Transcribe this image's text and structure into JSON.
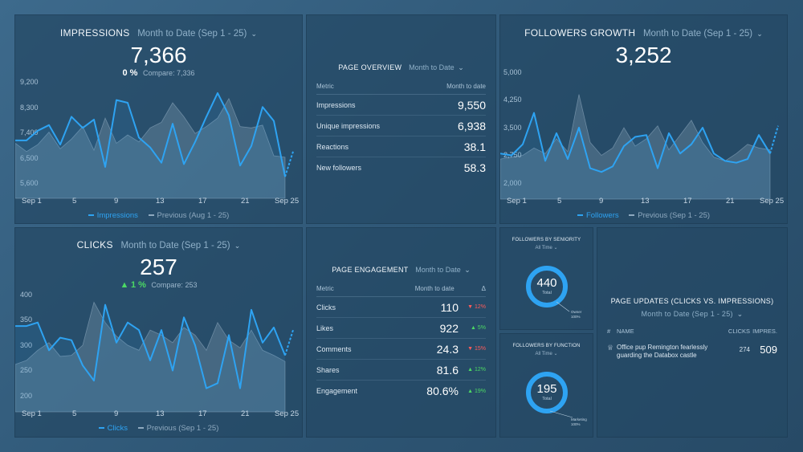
{
  "impressions": {
    "title": "IMPRESSIONS",
    "period": "Month to Date (Sep 1 - 25)",
    "value": "7,366",
    "change": "0 %",
    "compare": "Compare: 7,336",
    "legend_current": "Impressions",
    "legend_previous": "Previous (Aug 1 - 25)"
  },
  "page_overview": {
    "title": "PAGE OVERVIEW",
    "period": "Month to Date",
    "col_metric": "Metric",
    "col_value": "Month to date",
    "rows": [
      {
        "label": "Impressions",
        "value": "9,550"
      },
      {
        "label": "Unique impressions",
        "value": "6,938"
      },
      {
        "label": "Reactions",
        "value": "38.1"
      },
      {
        "label": "New followers",
        "value": "58.3"
      }
    ]
  },
  "followers_growth": {
    "title": "FOLLOWERS GROWTH",
    "period": "Month to Date (Sep 1 - 25)",
    "value": "3,252",
    "legend_current": "Followers",
    "legend_previous": "Previous (Sep 1 - 25)"
  },
  "clicks": {
    "title": "CLICKS",
    "period": "Month to Date (Sep 1 - 25)",
    "value": "257",
    "change": "1 %",
    "compare": "Compare: 253",
    "legend_current": "Clicks",
    "legend_previous": "Previous (Sep 1 - 25)"
  },
  "page_engagement": {
    "title": "PAGE ENGAGEMENT",
    "period": "Month to Date",
    "col_metric": "Metric",
    "col_value": "Month to date",
    "col_delta": "Δ",
    "rows": [
      {
        "label": "Clicks",
        "value": "110",
        "delta": "▼ 12%",
        "dir": "down"
      },
      {
        "label": "Likes",
        "value": "922",
        "delta": "▲ 5%",
        "dir": "up"
      },
      {
        "label": "Comments",
        "value": "24.3",
        "delta": "▼ 15%",
        "dir": "down"
      },
      {
        "label": "Shares",
        "value": "81.6",
        "delta": "▲ 12%",
        "dir": "up"
      },
      {
        "label": "Engagement",
        "value": "80.6%",
        "delta": "▲ 19%",
        "dir": "up"
      }
    ]
  },
  "followers_by_seniority": {
    "title": "FOLLOWERS BY SENIORITY",
    "period": "All Time",
    "value": "440",
    "total_label": "Total",
    "slice_label": "Owner",
    "slice_pct": "100%"
  },
  "followers_by_function": {
    "title": "FOLLOWERS BY FUNCTION",
    "period": "All Time",
    "value": "195",
    "total_label": "Total",
    "slice_label": "Marketing",
    "slice_pct": "100%"
  },
  "page_updates": {
    "title": "PAGE UPDATES (CLICKS VS. IMPRESSIONS)",
    "period": "Month to Date (Sep 1 - 25)",
    "col_hash": "#",
    "col_name": "NAME",
    "col_clicks": "CLICKS",
    "col_impr": "IMPRES.",
    "row_line1": "Office pup Remington fearlessly",
    "row_line2": "guarding the Databox castle",
    "row_clicks": "274",
    "row_impr": "509"
  },
  "colors": {
    "accent": "#2ea3f2",
    "previous": "#8ea9bf",
    "up": "#4cd964",
    "down": "#ff5b5b"
  },
  "chart_data": [
    {
      "type": "line",
      "title": "IMPRESSIONS",
      "x": [
        1,
        2,
        3,
        4,
        5,
        6,
        7,
        8,
        9,
        10,
        11,
        12,
        13,
        14,
        15,
        16,
        17,
        18,
        19,
        20,
        21,
        22,
        23,
        24,
        25
      ],
      "x_ticks": [
        "Sep 1",
        "5",
        "9",
        "13",
        "17",
        "21",
        "Sep 25"
      ],
      "y_ticks": [
        "9,200",
        "8,300",
        "7,400",
        "6,500",
        "5,600"
      ],
      "ylim": [
        5600,
        9200
      ],
      "series": [
        {
          "name": "Impressions",
          "values": [
            7100,
            7100,
            7450,
            7650,
            6950,
            7950,
            7550,
            7850,
            6150,
            8550,
            8450,
            7200,
            6850,
            6300,
            7700,
            6250,
            7050,
            7950,
            8800,
            8000,
            6200,
            6900,
            8300,
            7800,
            5800
          ]
        },
        {
          "name": "Previous (Aug 1 - 25)",
          "values": [
            7000,
            6700,
            6950,
            7400,
            6800,
            7150,
            7600,
            6750,
            7900,
            7000,
            7300,
            7050,
            7550,
            7750,
            8450,
            7950,
            7350,
            7600,
            7900,
            8600,
            7600,
            7550,
            7650,
            6550,
            6500
          ]
        }
      ],
      "projection": [
        5800,
        6700
      ]
    },
    {
      "type": "line",
      "title": "FOLLOWERS GROWTH",
      "x": [
        1,
        2,
        3,
        4,
        5,
        6,
        7,
        8,
        9,
        10,
        11,
        12,
        13,
        14,
        15,
        16,
        17,
        18,
        19,
        20,
        21,
        22,
        23,
        24,
        25
      ],
      "x_ticks": [
        "Sep 1",
        "5",
        "9",
        "13",
        "17",
        "21",
        "Sep 25"
      ],
      "y_ticks": [
        "5,000",
        "4,250",
        "3,500",
        "2,750",
        "2,000"
      ],
      "ylim": [
        2000,
        5000
      ],
      "series": [
        {
          "name": "Followers",
          "values": [
            2800,
            2750,
            3050,
            3900,
            2600,
            3350,
            2650,
            3500,
            2400,
            2300,
            2450,
            3000,
            3250,
            3300,
            2400,
            3350,
            2800,
            3050,
            3500,
            2800,
            2600,
            2550,
            2650,
            3300,
            2800
          ]
        },
        {
          "name": "Previous (Sep 1 - 25)",
          "values": [
            2650,
            2700,
            2750,
            2950,
            2800,
            3200,
            2850,
            4400,
            3100,
            2750,
            2950,
            3500,
            3000,
            3200,
            3550,
            2900,
            3300,
            3700,
            3100,
            2700,
            2600,
            2800,
            3050,
            2950,
            2900
          ]
        }
      ],
      "projection": [
        2800,
        3550
      ]
    },
    {
      "type": "line",
      "title": "CLICKS",
      "x": [
        1,
        2,
        3,
        4,
        5,
        6,
        7,
        8,
        9,
        10,
        11,
        12,
        13,
        14,
        15,
        16,
        17,
        18,
        19,
        20,
        21,
        22,
        23,
        24,
        25
      ],
      "x_ticks": [
        "Sep 1",
        "5",
        "9",
        "13",
        "17",
        "21",
        "Sep 25"
      ],
      "y_ticks": [
        "400",
        "350",
        "300",
        "250",
        "200"
      ],
      "ylim": [
        200,
        400
      ],
      "series": [
        {
          "name": "Clicks",
          "values": [
            338,
            338,
            345,
            290,
            315,
            310,
            260,
            230,
            380,
            305,
            345,
            330,
            270,
            330,
            250,
            355,
            300,
            215,
            225,
            320,
            215,
            370,
            305,
            335,
            280
          ]
        },
        {
          "name": "Previous (Sep 1 - 25)",
          "values": [
            262,
            270,
            290,
            305,
            278,
            280,
            300,
            385,
            345,
            318,
            300,
            290,
            330,
            320,
            305,
            335,
            320,
            290,
            345,
            310,
            295,
            330,
            290,
            280,
            268
          ]
        }
      ],
      "projection": [
        280,
        330
      ]
    }
  ]
}
